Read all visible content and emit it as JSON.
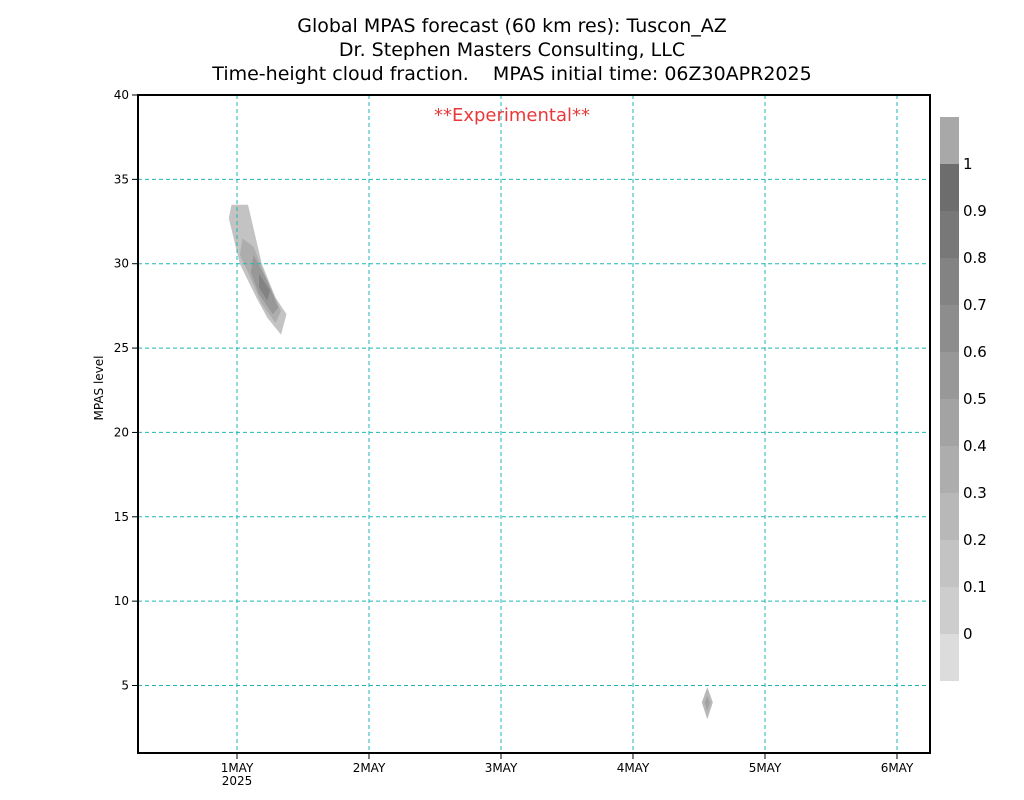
{
  "titles": [
    "Global MPAS forecast (60 km res): Tuscon_AZ",
    "Dr. Stephen Masters Consulting, LLC",
    "Time-height cloud fraction.    MPAS initial time: 06Z30APR2025"
  ],
  "annotation": "**Experimental**",
  "chart_data": {
    "type": "heatmap",
    "ylabel": "MPAS level",
    "xlim": [
      "2025-04-30T06:00",
      "2025-05-06T06:00"
    ],
    "ylim": [
      1,
      40
    ],
    "y_ticks": [
      5,
      10,
      15,
      20,
      25,
      30,
      35,
      40
    ],
    "x_ticks": [
      {
        "date": "2025-05-01T00:00",
        "label": "1MAY",
        "sublabel": "2025"
      },
      {
        "date": "2025-05-02T00:00",
        "label": "2MAY",
        "sublabel": ""
      },
      {
        "date": "2025-05-03T00:00",
        "label": "3MAY",
        "sublabel": ""
      },
      {
        "date": "2025-05-04T00:00",
        "label": "4MAY",
        "sublabel": ""
      },
      {
        "date": "2025-05-05T00:00",
        "label": "5MAY",
        "sublabel": ""
      },
      {
        "date": "2025-05-06T00:00",
        "label": "6MAY",
        "sublabel": ""
      }
    ],
    "grid": true,
    "legend": "colorbar-right",
    "colorbar": {
      "levels": [
        "0",
        "0.1",
        "0.2",
        "0.3",
        "0.4",
        "0.5",
        "0.6",
        "0.7",
        "0.8",
        "0.9",
        "1"
      ],
      "colors": [
        "#dcdcdc",
        "#cdcdcd",
        "#c3c3c3",
        "#b8b8b8",
        "#adadad",
        "#a3a3a3",
        "#989898",
        "#8d8d8d",
        "#838383",
        "#787878",
        "#6d6d6d",
        "#a8a8a8"
      ]
    },
    "features": [
      {
        "name": "upper-cloud-band",
        "layers": [
          {
            "value": 0.1,
            "points": [
              [
                "2025-04-30T23:00",
                33.5
              ],
              [
                "2025-05-01T02:00",
                33.5
              ],
              [
                "2025-05-01T04:30",
                30.0
              ],
              [
                "2025-05-01T07:00",
                28.0
              ],
              [
                "2025-05-01T09:00",
                27.0
              ],
              [
                "2025-05-01T08:00",
                25.8
              ],
              [
                "2025-05-01T05:30",
                26.8
              ],
              [
                "2025-05-01T03:30",
                28.0
              ],
              [
                "2025-05-01T00:30",
                30.0
              ],
              [
                "2025-04-30T22:30",
                32.7
              ]
            ]
          },
          {
            "value": 0.3,
            "points": [
              [
                "2025-05-01T01:00",
                31.5
              ],
              [
                "2025-05-01T03:00",
                31.0
              ],
              [
                "2025-05-01T05:30",
                29.0
              ],
              [
                "2025-05-01T08:00",
                27.2
              ],
              [
                "2025-05-01T07:00",
                26.5
              ],
              [
                "2025-05-01T04:30",
                27.6
              ],
              [
                "2025-05-01T02:00",
                29.5
              ],
              [
                "2025-05-01T00:30",
                30.5
              ]
            ]
          },
          {
            "value": 0.5,
            "points": [
              [
                "2025-05-01T03:00",
                30.5
              ],
              [
                "2025-05-01T05:30",
                29.0
              ],
              [
                "2025-05-01T07:30",
                27.4
              ],
              [
                "2025-05-01T06:30",
                27.0
              ],
              [
                "2025-05-01T04:00",
                28.2
              ],
              [
                "2025-05-01T02:30",
                29.5
              ]
            ]
          },
          {
            "value": 0.7,
            "points": [
              [
                "2025-05-01T04:00",
                29.4
              ],
              [
                "2025-05-01T06:00",
                28.4
              ],
              [
                "2025-05-01T05:30",
                27.8
              ],
              [
                "2025-05-01T04:00",
                28.6
              ]
            ]
          }
        ]
      },
      {
        "name": "low-cloud-spot",
        "layers": [
          {
            "value": 0.2,
            "points": [
              [
                "2025-05-04T13:30",
                4.9
              ],
              [
                "2025-05-04T14:30",
                4.0
              ],
              [
                "2025-05-04T13:30",
                3.0
              ],
              [
                "2025-05-04T12:30",
                4.0
              ]
            ]
          },
          {
            "value": 0.4,
            "points": [
              [
                "2025-05-04T13:30",
                4.4
              ],
              [
                "2025-05-04T14:00",
                4.0
              ],
              [
                "2025-05-04T13:30",
                3.5
              ],
              [
                "2025-05-04T13:00",
                4.0
              ]
            ]
          }
        ]
      }
    ]
  }
}
